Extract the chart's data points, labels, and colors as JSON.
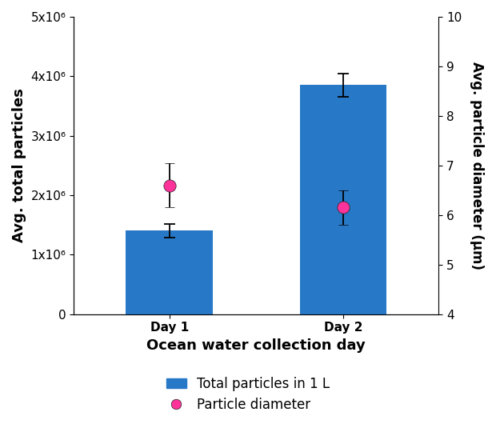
{
  "categories": [
    "Day 1",
    "Day 2"
  ],
  "bar_values": [
    1400000,
    3850000
  ],
  "bar_errors": [
    120000,
    200000
  ],
  "bar_color": "#2878C8",
  "dot_values": [
    6.6,
    6.15
  ],
  "dot_errors": [
    0.45,
    0.35
  ],
  "dot_color": "#FF3399",
  "dot_edgecolor": "#222222",
  "left_ylabel": "Avg. total particles",
  "right_ylabel": "Avg. particle diameter (μm)",
  "xlabel": "Ocean water collection day",
  "ylim_left": [
    0,
    5000000
  ],
  "ylim_right": [
    4,
    10
  ],
  "yticks_left": [
    0,
    1000000,
    2000000,
    3000000,
    4000000,
    5000000
  ],
  "ytick_labels_left": [
    "0",
    "1x10⁶",
    "2x10⁶",
    "3x10⁶",
    "4x10⁶",
    "5x10⁶"
  ],
  "yticks_right": [
    4,
    5,
    6,
    7,
    8,
    9,
    10
  ],
  "legend_bar_label": "Total particles in 1 L",
  "legend_dot_label": "Particle diameter",
  "figsize": [
    6.2,
    5.3
  ],
  "dpi": 100
}
